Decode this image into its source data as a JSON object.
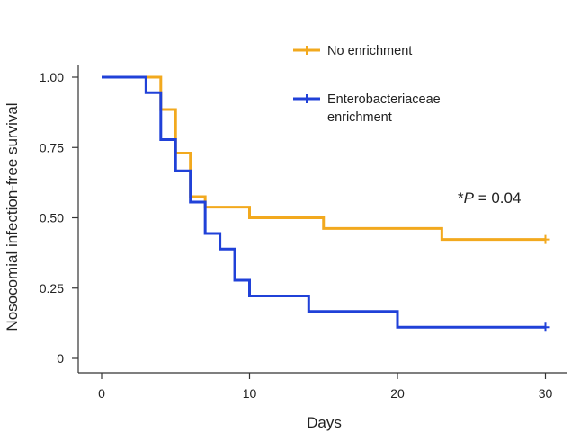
{
  "chart_data": {
    "type": "line",
    "subtype": "kaplan-meier-step",
    "title": "",
    "xlabel": "Days",
    "ylabel": "Nosocomial infection-free survival",
    "xlim": [
      0,
      31
    ],
    "ylim": [
      0,
      1.04
    ],
    "x_ticks": [
      0,
      10,
      20,
      30
    ],
    "x_tick_labels": [
      "0",
      "10",
      "20",
      "30"
    ],
    "y_ticks": [
      0,
      0.25,
      0.5,
      0.75,
      1.0
    ],
    "y_tick_labels": [
      "0",
      "0.25",
      "0.50",
      "0.75",
      "1.00"
    ],
    "grid": false,
    "legend_position": "top-right",
    "annotation": {
      "prefix": "*",
      "italic": "P",
      "suffix": " = 0.04"
    },
    "series": [
      {
        "name": "No enrichment",
        "color": "#f2a91e",
        "censor_marker": "plus",
        "steps": [
          {
            "x": 0,
            "y": 1.0
          },
          {
            "x": 4,
            "y": 0.885
          },
          {
            "x": 5,
            "y": 0.73
          },
          {
            "x": 6,
            "y": 0.575
          },
          {
            "x": 7,
            "y": 0.538
          },
          {
            "x": 10,
            "y": 0.5
          },
          {
            "x": 15,
            "y": 0.462
          },
          {
            "x": 23,
            "y": 0.423
          },
          {
            "x": 30,
            "y": 0.423
          }
        ],
        "censored": [
          {
            "x": 30,
            "y": 0.423
          }
        ]
      },
      {
        "name": "Enterobacteriaceae enrichment",
        "color": "#2041d8",
        "censor_marker": "plus",
        "steps": [
          {
            "x": 0,
            "y": 1.0
          },
          {
            "x": 3,
            "y": 0.945
          },
          {
            "x": 4,
            "y": 0.778
          },
          {
            "x": 5,
            "y": 0.667
          },
          {
            "x": 6,
            "y": 0.556
          },
          {
            "x": 7,
            "y": 0.444
          },
          {
            "x": 8,
            "y": 0.389
          },
          {
            "x": 9,
            "y": 0.278
          },
          {
            "x": 10,
            "y": 0.222
          },
          {
            "x": 14,
            "y": 0.167
          },
          {
            "x": 20,
            "y": 0.111
          },
          {
            "x": 30,
            "y": 0.111
          }
        ],
        "censored": [
          {
            "x": 30,
            "y": 0.111
          }
        ]
      }
    ],
    "legend": [
      {
        "label_lines": [
          "No enrichment"
        ]
      },
      {
        "label_lines": [
          "Enterobacteriaceae",
          "enrichment"
        ]
      }
    ]
  }
}
